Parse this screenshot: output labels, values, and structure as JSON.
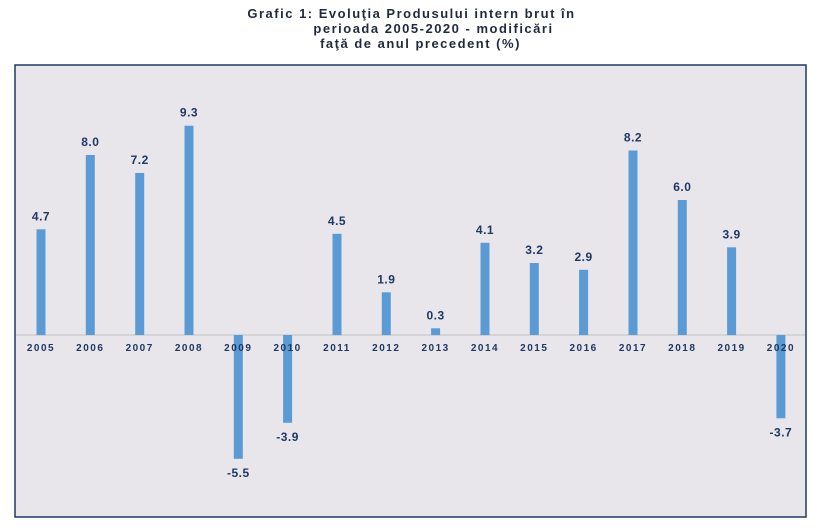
{
  "chart_data": {
    "type": "bar",
    "title_lines": [
      "Grafic 1: Evoluţia Produsului intern brut în",
      "perioada 2005-2020 - modificări",
      "faţă de anul precedent (%)"
    ],
    "categories": [
      "2005",
      "2006",
      "2007",
      "2008",
      "2009",
      "2010",
      "2011",
      "2012",
      "2013",
      "2014",
      "2015",
      "2016",
      "2017",
      "2018",
      "2019",
      "2020"
    ],
    "series": [
      {
        "values": [
          4.7,
          8.0,
          7.2,
          9.3,
          -5.5,
          -3.9,
          4.5,
          1.9,
          0.3,
          4.1,
          3.2,
          2.9,
          8.2,
          6.0,
          3.9,
          -3.7
        ]
      }
    ],
    "value_labels": [
      "4.7",
      "8.0",
      "7.2",
      "9.3",
      "-5.5",
      "-3.9",
      "4.5",
      "1.9",
      "0.3",
      "4.1",
      "3.2",
      "2.9",
      "8.2",
      "6.0",
      "3.9",
      "-3.7"
    ],
    "ylim": [
      -7.5,
      10.5
    ],
    "grid": false,
    "legend": "none",
    "colors": {
      "bar": "#5b9bd5",
      "plot_background": "#e8e6eb",
      "plot_border": "#1f3864",
      "label_text": "#1f3864",
      "axis_line": "#c0c0c0"
    }
  }
}
